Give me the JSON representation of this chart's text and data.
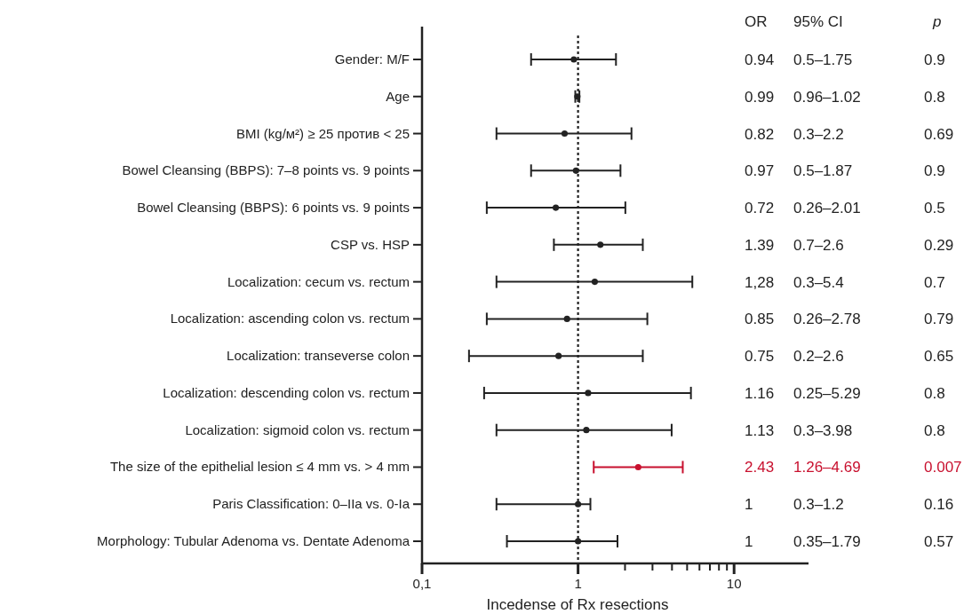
{
  "chart_data": {
    "type": "scatter",
    "orientation": "horizontal",
    "xlabel": "Incedense of Rx resections",
    "categories": [
      "Gender: M/F",
      "Age",
      "BMI (kg/м²) ≥ 25 против < 25",
      "Bowel Cleansing (BBPS): 7–8 points vs. 9 points",
      "Bowel Cleansing (BBPS): 6 points vs. 9 points",
      "CSP vs. HSP",
      "Localization: cecum vs. rectum",
      "Localization: ascending colon vs. rectum",
      "Localization: transeverse colon",
      "Localization: descending colon vs. rectum",
      "Localization: sigmoid colon vs. rectum",
      "The size of the epithelial lesion ≤ 4 mm vs. > 4 mm",
      "Paris Classification: 0–IIa vs. 0-Ia",
      "Morphology: Tubular Adenoma vs. Dentate Adenoma"
    ],
    "values": [
      0.94,
      0.99,
      0.82,
      0.97,
      0.72,
      1.39,
      1.28,
      0.85,
      0.75,
      1.16,
      1.13,
      2.43,
      1,
      1
    ],
    "errors": [
      [
        0.5,
        1.75
      ],
      [
        0.96,
        1.02
      ],
      [
        0.3,
        2.2
      ],
      [
        0.5,
        1.87
      ],
      [
        0.26,
        2.01
      ],
      [
        0.7,
        2.6
      ],
      [
        0.3,
        5.4
      ],
      [
        0.26,
        2.78
      ],
      [
        0.2,
        2.6
      ],
      [
        0.25,
        5.29
      ],
      [
        0.3,
        3.98
      ],
      [
        1.26,
        4.69
      ],
      [
        0.3,
        1.2
      ],
      [
        0.35,
        1.79
      ]
    ],
    "colors": [
      "#222222",
      "#222222",
      "#222222",
      "#222222",
      "#222222",
      "#222222",
      "#222222",
      "#222222",
      "#222222",
      "#222222",
      "#222222",
      "#c8102e",
      "#222222",
      "#222222"
    ],
    "log": "x",
    "xlim": [
      0.1,
      30
    ],
    "xticks": [
      {
        "value": 0.1,
        "label": "0,1"
      },
      1,
      {
        "value": 2,
        "label": null
      },
      {
        "value": 3,
        "label": null
      },
      {
        "value": 4,
        "label": null
      },
      {
        "value": 5,
        "label": null
      },
      {
        "value": 6,
        "label": null
      },
      {
        "value": 7,
        "label": null
      },
      {
        "value": 8,
        "label": null
      },
      {
        "value": 9,
        "label": null
      },
      10
    ],
    "ref_lines": [
      {
        "axis": "x",
        "value": 1,
        "line_style": "dotted",
        "color": "#222222"
      }
    ],
    "marker": "circle",
    "grid": false,
    "annotations": [
      "OR",
      "95% CI",
      "p",
      "0.94",
      "0.99",
      "0.82",
      "0.97",
      "0.72",
      "1.39",
      "1,28",
      "0.85",
      "0.75",
      "1.16",
      "1.13",
      "2.43",
      "1",
      "1",
      "0.5–1.75",
      "0.96–1.02",
      "0.3–2.2",
      "0.5–1.87",
      "0.26–2.01",
      "0.7–2.6",
      "0.3–5.4",
      "0.26–2.78",
      "0.2–2.6",
      "0.25–5.29",
      "0.3–3.98",
      "1.26–4.69",
      "0.3–1.2",
      "0.35–1.79",
      "0.9",
      "0.8",
      "0.69",
      "0.9",
      "0.5",
      "0.29",
      "0.7",
      "0.79",
      "0.65",
      "0.8",
      "0.8",
      "0.007",
      "0.16",
      "0.57"
    ]
  }
}
